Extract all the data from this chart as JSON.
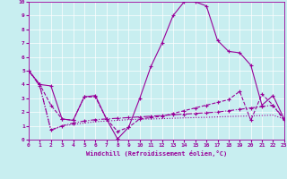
{
  "xlabel": "Windchill (Refroidissement éolien,°C)",
  "background_color": "#c8eef0",
  "line_color": "#990099",
  "xlim": [
    0,
    23
  ],
  "ylim": [
    0,
    10
  ],
  "xticks": [
    0,
    1,
    2,
    3,
    4,
    5,
    6,
    7,
    8,
    9,
    10,
    11,
    12,
    13,
    14,
    15,
    16,
    17,
    18,
    19,
    20,
    21,
    22,
    23
  ],
  "yticks": [
    0,
    1,
    2,
    3,
    4,
    5,
    6,
    7,
    8,
    9,
    10
  ],
  "s1_x": [
    0,
    1,
    2,
    3,
    4,
    5,
    6,
    7,
    8,
    9,
    10,
    11,
    12,
    13,
    14,
    15,
    16,
    17,
    18,
    19,
    20,
    21,
    22,
    23
  ],
  "s1_y": [
    5.0,
    4.0,
    3.9,
    1.5,
    1.4,
    3.1,
    3.2,
    1.5,
    0.05,
    0.9,
    3.0,
    5.3,
    7.0,
    9.0,
    10.0,
    10.0,
    9.7,
    7.2,
    6.4,
    6.3,
    5.4,
    2.5,
    3.2,
    1.5
  ],
  "s2_x": [
    0,
    1,
    2,
    3,
    4,
    5,
    6,
    7,
    8,
    9,
    10,
    11,
    12,
    13,
    14,
    15,
    16,
    17,
    18,
    19,
    20,
    21,
    22,
    23
  ],
  "s2_y": [
    5.0,
    4.0,
    2.5,
    1.5,
    1.4,
    3.1,
    3.1,
    1.5,
    0.6,
    0.9,
    1.5,
    1.6,
    1.7,
    1.9,
    2.1,
    2.3,
    2.5,
    2.7,
    2.9,
    3.5,
    1.4,
    3.3,
    2.5,
    1.4
  ],
  "s3_x": [
    0,
    1,
    2,
    3,
    4,
    5,
    6,
    7,
    8,
    9,
    10,
    11,
    12,
    13,
    14,
    15,
    16,
    17,
    18,
    19,
    20,
    21,
    22,
    23
  ],
  "s3_y": [
    5.0,
    3.9,
    0.7,
    1.0,
    1.2,
    1.35,
    1.45,
    1.5,
    1.55,
    1.6,
    1.65,
    1.7,
    1.75,
    1.8,
    1.85,
    1.9,
    1.95,
    2.0,
    2.1,
    2.2,
    2.3,
    2.4,
    2.5,
    1.5
  ],
  "s4_x": [
    0,
    1,
    2,
    3,
    4,
    5,
    6,
    7,
    8,
    9,
    10,
    11,
    12,
    13,
    14,
    15,
    16,
    17,
    18,
    19,
    20,
    21,
    22,
    23
  ],
  "s4_y": [
    5.0,
    3.9,
    0.65,
    1.0,
    1.1,
    1.2,
    1.3,
    1.35,
    1.4,
    1.45,
    1.48,
    1.5,
    1.52,
    1.55,
    1.58,
    1.6,
    1.62,
    1.65,
    1.68,
    1.7,
    1.72,
    1.75,
    1.78,
    1.5
  ]
}
